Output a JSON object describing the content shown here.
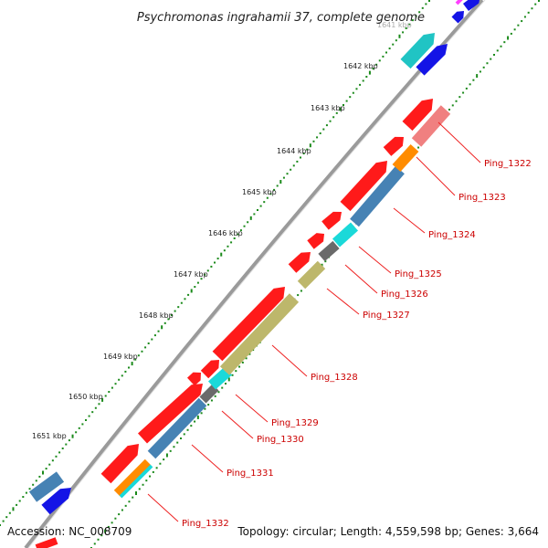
{
  "title": "Psychromonas ingrahamii 37, complete genome",
  "accession": "Accession: NC_008709",
  "topology": "Topology: circular; Length: 4,559,598 bp; Genes: 3,664",
  "colors": {
    "backbone": "#888888",
    "ticks": "#1a8a1a",
    "red": "#ff1a1a",
    "pink": "#f08080",
    "orange": "#ff8c00",
    "steelblue": "#4682b4",
    "cyan": "#1ad9d9",
    "olive": "#bdb76b",
    "gray": "#6a6a6a",
    "blue": "#1414e6",
    "teal": "#20c4c4",
    "magenta": "#ff40ff"
  },
  "kbp_labels": [
    "1641 kbp",
    "1642 kbp",
    "1643 kbp",
    "1644 kbp",
    "1645 kbp",
    "1646 kbp",
    "1647 kbp",
    "1648 kbp",
    "1649 kbp",
    "1650 kbp",
    "1651 kbp"
  ],
  "gene_labels": [
    "Ping_1322",
    "Ping_1323",
    "Ping_1324",
    "Ping_1325",
    "Ping_1326",
    "Ping_1327",
    "Ping_1328",
    "Ping_1329",
    "Ping_1330",
    "Ping_1331",
    "Ping_1332"
  ]
}
